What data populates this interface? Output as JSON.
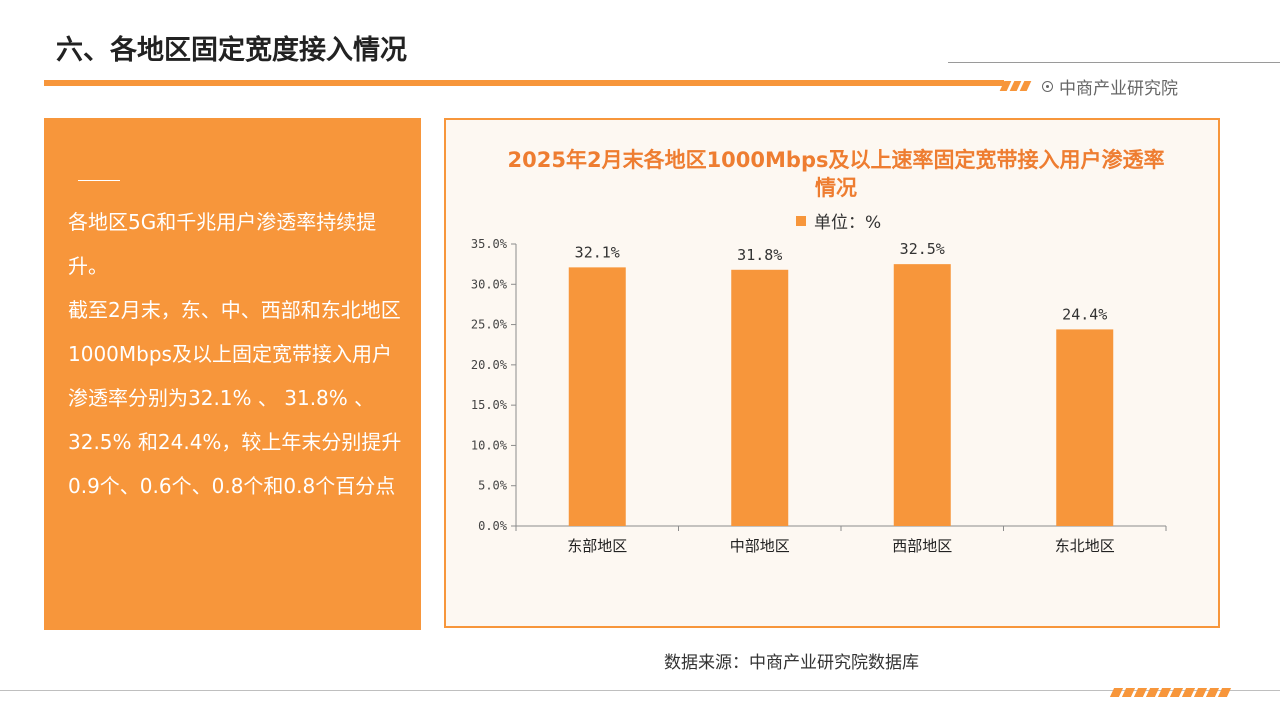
{
  "slide": {
    "title": "六、各地区固定宽度接入情况",
    "brand": "中商产业研究院",
    "source": "数据来源：中商产业研究院数据库"
  },
  "summary": {
    "lines": [
      "各地区5G和千兆用户渗透率持续提升。",
      "截至2月末，东、中、西部和东北地区1000Mbps及以上固定宽带接入用户渗透率分别为32.1% 、 31.8% 、 32.5% 和24.4%，较上年末分别提升0.9个、0.6个、0.8个和0.8个百分点"
    ]
  },
  "colors": {
    "accent": "#f7963b",
    "title": "#ee7d31"
  },
  "chart_data": {
    "type": "bar",
    "title": "2025年2月末各地区1000Mbps及以上速率固定宽带接入用户渗透率情况",
    "legend": "单位：%",
    "categories": [
      "东部地区",
      "中部地区",
      "西部地区",
      "东北地区"
    ],
    "values": [
      32.1,
      31.8,
      32.5,
      24.4
    ],
    "value_labels": [
      "32.1%",
      "31.8%",
      "32.5%",
      "24.4%"
    ],
    "yticks": [
      "0.0%",
      "5.0%",
      "10.0%",
      "15.0%",
      "20.0%",
      "25.0%",
      "30.0%",
      "35.0%"
    ],
    "ylim": [
      0,
      35
    ],
    "xlabel": "",
    "ylabel": ""
  }
}
